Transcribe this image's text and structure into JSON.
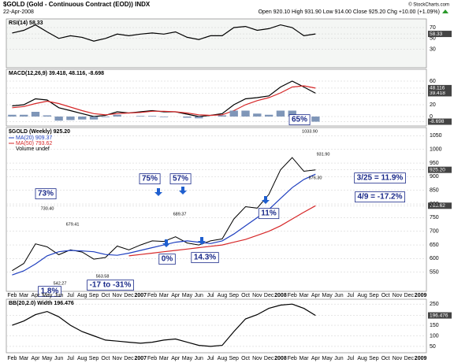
{
  "header": {
    "title": "$GOLD (Gold - Continuous Contract (EOD)) INDX",
    "date": "22-Apr-2008",
    "quote": "Open 920.10 High 931.90 Low 914.00 Close 925.20 Chg +10.00 (+1.09%)",
    "credit": "© StockCharts.com"
  },
  "chart_data": [
    {
      "type": "line",
      "title": "RSI(14) 58.33",
      "ylim": [
        -4,
        86
      ],
      "yticks": [
        30,
        50,
        58.33,
        70
      ],
      "series": [
        {
          "color": "#000000",
          "values": [
            60,
            65,
            75,
            62,
            50,
            55,
            52,
            45,
            50,
            58,
            55,
            58,
            60,
            58,
            62,
            52,
            48,
            55,
            55,
            70,
            72,
            65,
            68,
            75,
            70,
            55,
            58.33,
            null,
            null,
            null,
            null,
            null,
            null,
            null,
            null,
            null
          ]
        }
      ]
    },
    {
      "type": "line",
      "title": "MACD(12,26,9) 39.418, 48.116, -8.698",
      "ylim": [
        -16,
        80
      ],
      "yticks": [
        -8.698,
        0,
        20,
        39.418,
        48.116,
        60
      ],
      "series": [
        {
          "color": "#000000",
          "values": [
            18,
            20,
            30,
            28,
            15,
            10,
            5,
            0,
            2,
            8,
            6,
            8,
            10,
            8,
            8,
            4,
            0,
            2,
            5,
            20,
            30,
            32,
            35,
            50,
            60,
            50,
            39.418,
            null,
            null,
            null,
            null,
            null,
            null,
            null,
            null,
            null
          ]
        },
        {
          "color": "#d62728",
          "values": [
            15,
            17,
            22,
            26,
            22,
            16,
            10,
            5,
            3,
            5,
            6,
            7,
            9,
            9,
            8,
            6,
            3,
            2,
            3,
            10,
            20,
            27,
            32,
            40,
            50,
            52,
            48.116,
            null,
            null,
            null,
            null,
            null,
            null,
            null,
            null,
            null
          ]
        },
        {
          "type": "bar",
          "color": "#7f96b8",
          "values": [
            3,
            3,
            8,
            2,
            -7,
            -6,
            -5,
            -5,
            -1,
            3,
            0,
            1,
            1,
            -1,
            0,
            -2,
            -3,
            0,
            2,
            10,
            10,
            5,
            3,
            10,
            10,
            -2,
            -8.698,
            null,
            null,
            null,
            null,
            null,
            null,
            null,
            null,
            null
          ]
        }
      ],
      "annotations": [
        "65%"
      ]
    },
    {
      "type": "line",
      "title": "$GOLD (Weekly) 925.20",
      "note": "Volume undef",
      "ylim": [
        480,
        1080
      ],
      "yticks": [
        550,
        600,
        650,
        700,
        750,
        793.62,
        800,
        850,
        900,
        {
          "value": 925.2,
          "label": "925.20"
        },
        950,
        1000,
        1050
      ],
      "categories": [
        "Feb",
        "Mar",
        "Apr",
        "May",
        "Jun",
        "Jul",
        "Aug",
        "Sep",
        "Oct",
        "Nov",
        "Dec",
        "2007",
        "Feb",
        "Mar",
        "Apr",
        "May",
        "Jun",
        "Jul",
        "Aug",
        "Sep",
        "Oct",
        "Nov",
        "Dec",
        "2008",
        "Feb",
        "Mar",
        "Apr",
        "May",
        "Jun",
        "Jul",
        "Aug",
        "Sep",
        "Oct",
        "Nov",
        "Dec",
        "2009"
      ],
      "series": [
        {
          "color": "#000000",
          "values": [
            556,
            582,
            654,
            643,
            614,
            632,
            624,
            598,
            604,
            646,
            632,
            650,
            665,
            663,
            680,
            657,
            650,
            665,
            672,
            745,
            790,
            785,
            835,
            925,
            970,
            920,
            925.2,
            null,
            null,
            null,
            null,
            null,
            null,
            null,
            null,
            null
          ]
        },
        {
          "name": "MA(20) 909.37",
          "color": "#1f3fbf",
          "values": [
            540,
            555,
            580,
            610,
            625,
            630,
            628,
            625,
            615,
            612,
            620,
            630,
            640,
            650,
            660,
            665,
            660,
            655,
            665,
            690,
            720,
            750,
            780,
            820,
            860,
            890,
            909.37,
            null,
            null,
            null,
            null,
            null,
            null,
            null,
            null,
            null
          ]
        },
        {
          "name": "MA(50) 793.62",
          "color": "#d62728",
          "values": [
            null,
            null,
            null,
            null,
            null,
            null,
            null,
            null,
            null,
            null,
            610,
            615,
            620,
            625,
            630,
            635,
            640,
            645,
            650,
            660,
            670,
            685,
            700,
            720,
            745,
            770,
            793.62,
            null,
            null,
            null,
            null,
            null,
            null,
            null,
            null,
            null
          ]
        }
      ],
      "annotations": [
        "73%",
        "75%",
        "57%",
        "0%",
        "14.3%",
        "11%",
        "-17 to -31%",
        "1.8%",
        "3/25 = 11.9%",
        "4/9 = -17.2%"
      ],
      "price_labels": [
        "730.40",
        "679.41",
        "542.27",
        "563.58",
        "689.37",
        "1033.90",
        "931.90",
        "876.30"
      ]
    },
    {
      "type": "line",
      "title": "BB(20,2.0) Width 196.476",
      "ylim": [
        20,
        273
      ],
      "yticks": [
        50,
        100,
        150,
        196.476,
        250
      ],
      "series": [
        {
          "color": "#000000",
          "values": [
            150,
            170,
            200,
            215,
            190,
            150,
            120,
            100,
            80,
            75,
            70,
            65,
            70,
            80,
            85,
            70,
            55,
            50,
            55,
            120,
            180,
            200,
            230,
            245,
            250,
            230,
            196.476,
            null,
            null,
            null,
            null,
            null,
            null,
            null,
            null,
            null
          ]
        }
      ]
    }
  ]
}
